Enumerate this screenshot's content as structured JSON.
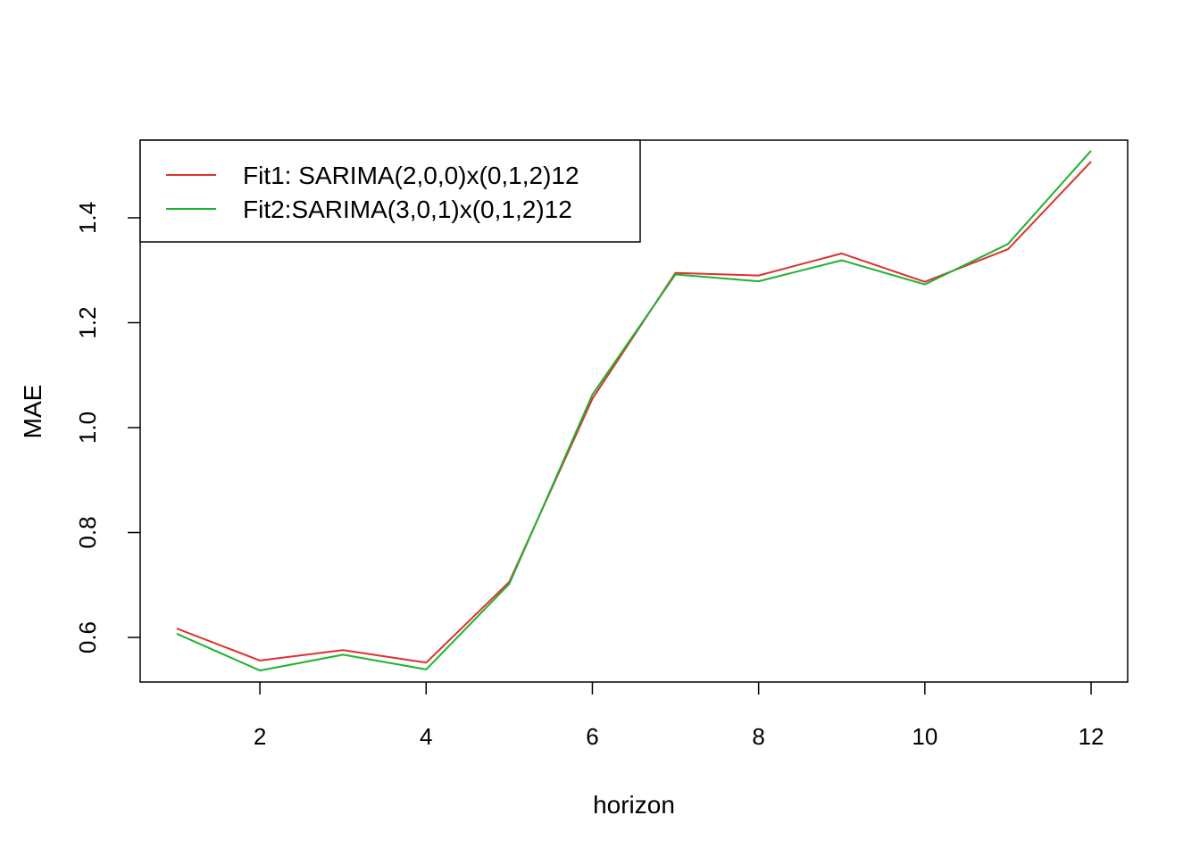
{
  "chart_data": {
    "type": "line",
    "title": "",
    "xlabel": "horizon",
    "ylabel": "MAE",
    "x": [
      1,
      2,
      3,
      4,
      5,
      6,
      7,
      8,
      9,
      10,
      11,
      12
    ],
    "xlim": [
      0.56,
      12.44
    ],
    "ylim": [
      0.515,
      1.548
    ],
    "xticks": [
      2,
      4,
      6,
      8,
      10,
      12
    ],
    "yticks": [
      0.6,
      0.8,
      1.0,
      1.2,
      1.4
    ],
    "xtick_labels": [
      "2",
      "4",
      "6",
      "8",
      "10",
      "12"
    ],
    "ytick_labels": [
      "0.6",
      "0.8",
      "1.0",
      "1.2",
      "1.4"
    ],
    "grid": false,
    "legend_position": "top-left",
    "series": [
      {
        "name": "Fit1: SARIMA(2,0,0)x(0,1,2)12",
        "color": "#DF2F2F",
        "values": [
          0.617,
          0.556,
          0.576,
          0.552,
          0.706,
          1.055,
          1.295,
          1.29,
          1.332,
          1.278,
          1.34,
          1.507
        ]
      },
      {
        "name": "Fit2:SARIMA(3,0,1)x(0,1,2)12",
        "color": "#1DB32D",
        "values": [
          0.607,
          0.537,
          0.567,
          0.539,
          0.702,
          1.063,
          1.292,
          1.279,
          1.319,
          1.273,
          1.35,
          1.528
        ]
      }
    ]
  }
}
